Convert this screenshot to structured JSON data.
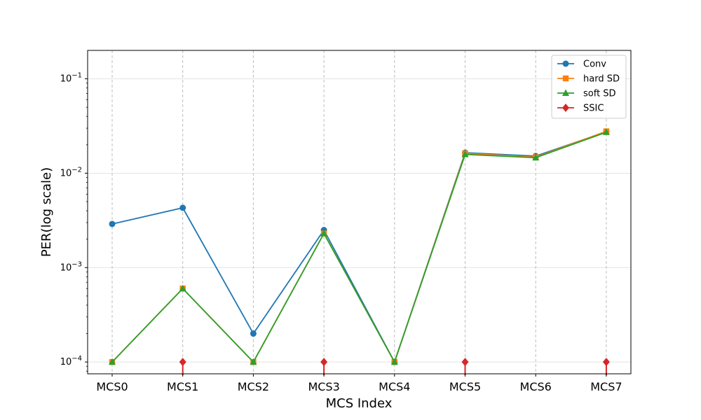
{
  "chart_data": {
    "type": "line",
    "title": "",
    "xlabel": "MCS Index",
    "ylabel": "PER(log scale)",
    "categories": [
      "MCS0",
      "MCS1",
      "MCS2",
      "MCS3",
      "MCS4",
      "MCS5",
      "MCS6",
      "MCS7"
    ],
    "yscale": "log",
    "ylim": [
      7.5e-05,
      0.2
    ],
    "yticks": [
      {
        "value": 0.0001,
        "base": "10",
        "exp": "−4"
      },
      {
        "value": 0.001,
        "base": "10",
        "exp": "−3"
      },
      {
        "value": 0.01,
        "base": "10",
        "exp": "−2"
      },
      {
        "value": 0.1,
        "base": "10",
        "exp": "−1"
      }
    ],
    "grid": {
      "x": "dashed",
      "y": "solid-light"
    },
    "legend_position": "top-right",
    "series": [
      {
        "name": "Conv",
        "color": "#1f77b4",
        "marker": "circle",
        "values": [
          0.0029,
          0.0043,
          0.0002,
          0.0025,
          0.0001,
          0.0165,
          0.0152,
          0.0275
        ]
      },
      {
        "name": "hard SD",
        "color": "#ff7f0e",
        "marker": "square",
        "values": [
          0.0001,
          0.0006,
          0.0001,
          0.0023,
          0.0001,
          0.0162,
          0.0148,
          0.0278
        ]
      },
      {
        "name": "soft SD",
        "color": "#2ca02c",
        "marker": "triangle",
        "values": [
          0.0001,
          0.0006,
          0.0001,
          0.0023,
          0.0001,
          0.0158,
          0.0146,
          0.0272
        ]
      },
      {
        "name": "SSIC",
        "color": "#d62728",
        "marker": "diamond",
        "style": "stem",
        "values": [
          null,
          0.0001,
          null,
          0.0001,
          null,
          0.0001,
          null,
          0.0001
        ]
      }
    ]
  }
}
